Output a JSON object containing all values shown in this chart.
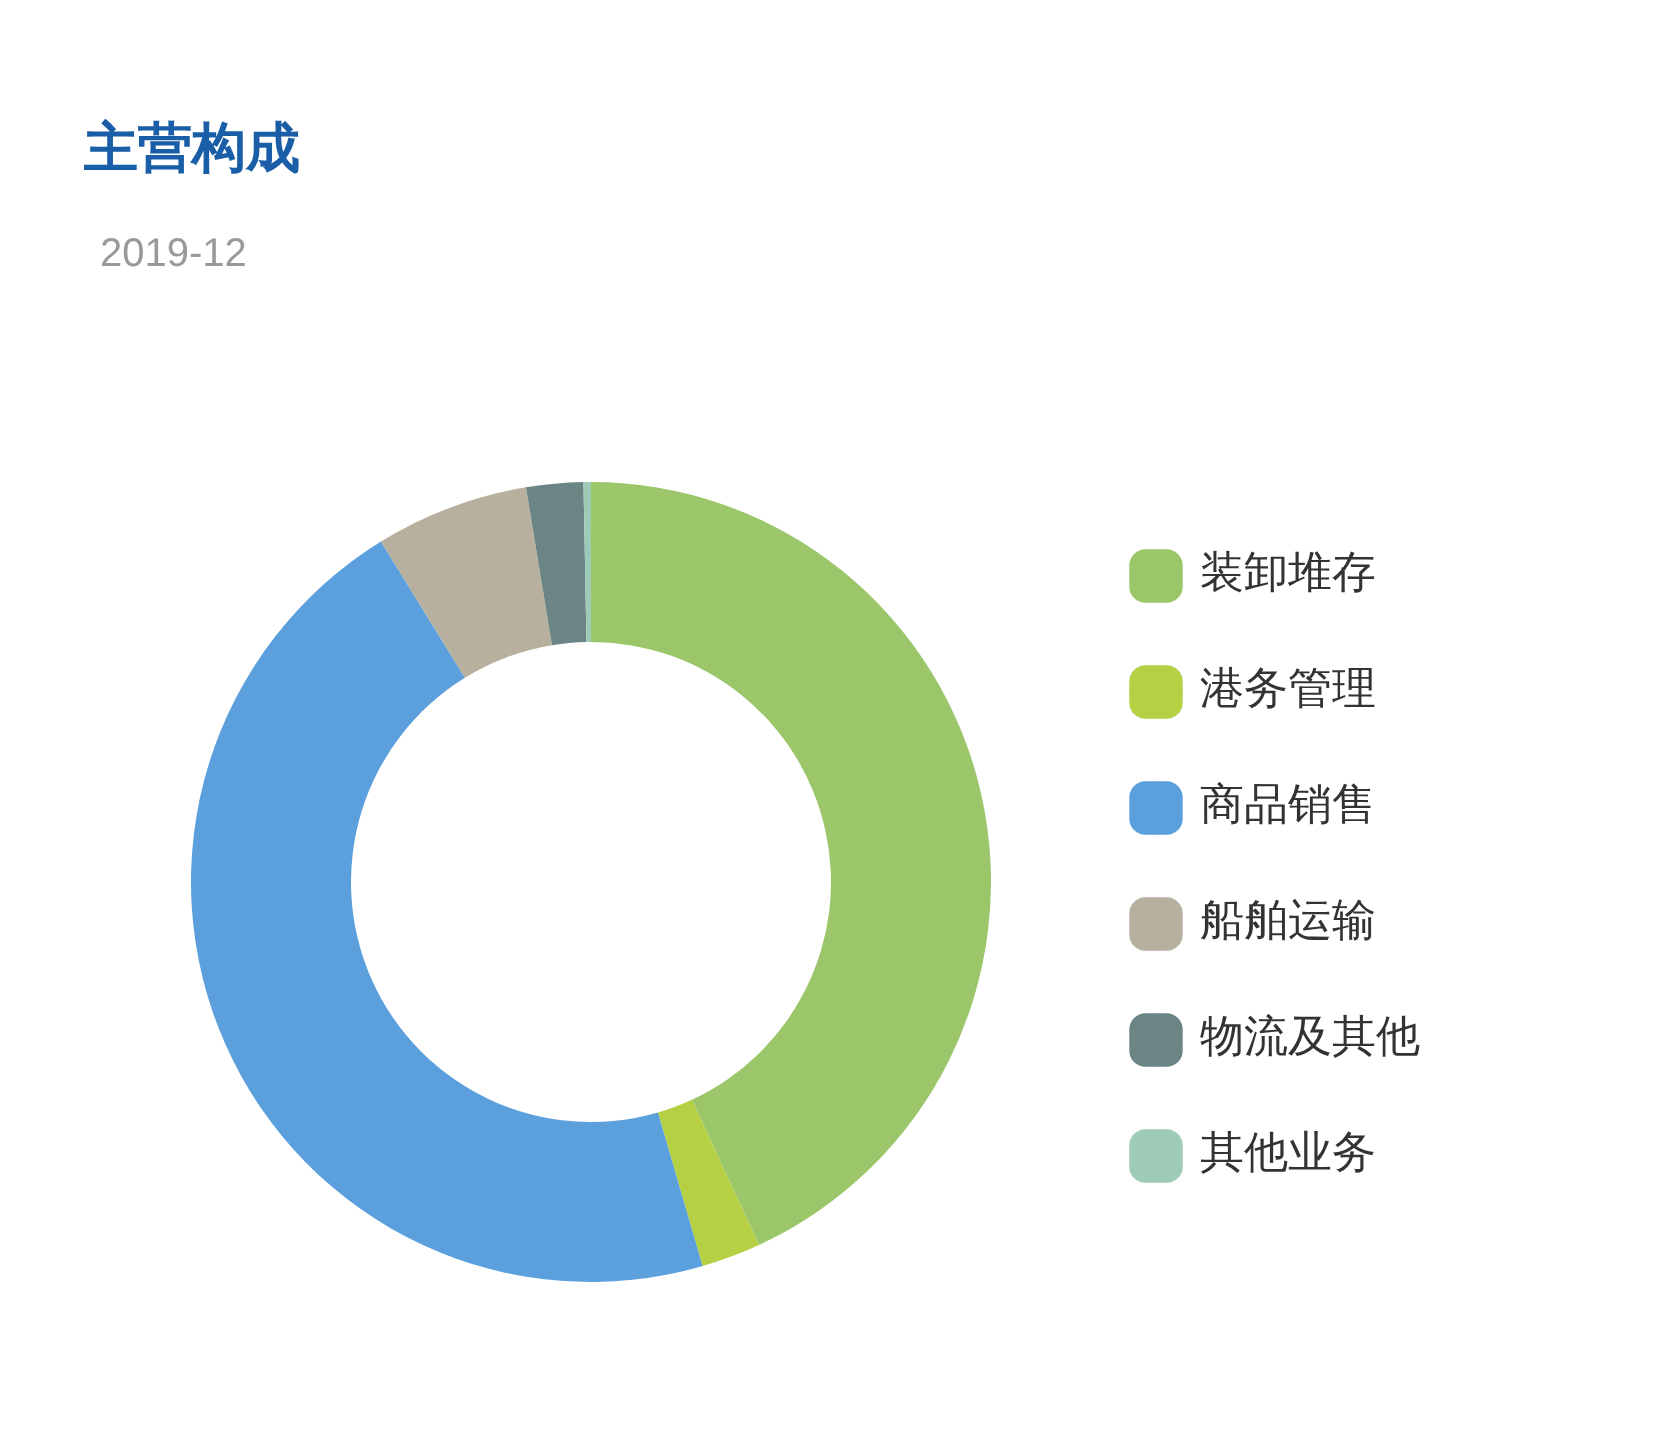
{
  "chart_data": {
    "type": "donut",
    "title": "主营构成",
    "subtitle": "2019-12",
    "categories": [
      "装卸堆存",
      "港务管理",
      "商品销售",
      "船舶运输",
      "物流及其他",
      "其他业务"
    ],
    "values": [
      43.1,
      2.4,
      45.7,
      6.2,
      2.3,
      0.3
    ],
    "colors": [
      "#9bc66a",
      "#b5d143",
      "#5b9fdc",
      "#b8b09f",
      "#6b8585",
      "#9dcbb8"
    ],
    "legend": "right"
  }
}
